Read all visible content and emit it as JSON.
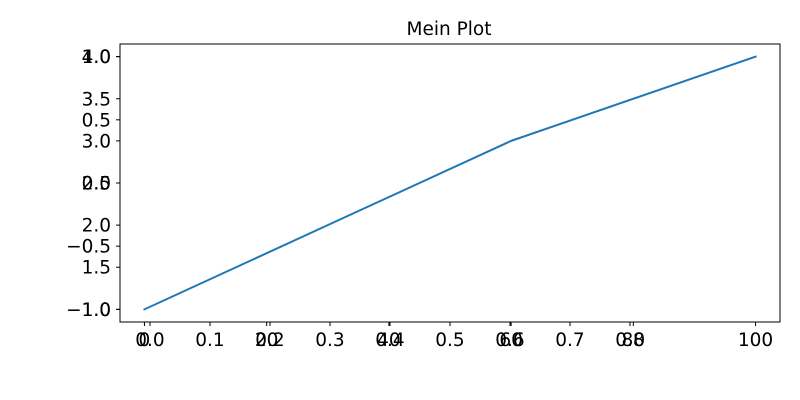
{
  "chart_data": {
    "type": "line",
    "title": "Mein Plot",
    "grid": false,
    "legend": "none",
    "series_color": "#1f77b4",
    "x": [
      0,
      60,
      100
    ],
    "y": [
      1,
      3,
      4
    ],
    "xlim": [
      -4,
      104
    ],
    "ylim": [
      0.85,
      4.15
    ],
    "primary_x_ticks": [
      0,
      20,
      40,
      60,
      80,
      100
    ],
    "primary_x_tick_labels": [
      "0",
      "20",
      "40",
      "60",
      "80",
      "100"
    ],
    "primary_y_ticks": [
      1.0,
      1.5,
      2.0,
      2.5,
      3.0,
      3.5,
      4.0
    ],
    "primary_y_tick_labels": [
      "1.0",
      "1.5",
      "2.0",
      "2.5",
      "3.0",
      "3.5",
      "4.0"
    ],
    "overlay_axes": {
      "xlim": [
        -0.05,
        1.05
      ],
      "ylim": [
        -1.1,
        1.1
      ],
      "x_ticks": [
        0.0,
        0.1,
        0.2,
        0.3,
        0.4,
        0.5,
        0.6,
        0.7,
        0.8
      ],
      "x_tick_labels": [
        "0.0",
        "0.1",
        "0.2",
        "0.3",
        "0.4",
        "0.5",
        "0.6",
        "0.7",
        "0.8"
      ],
      "y_ticks": [
        -1.0,
        -0.5,
        0.0,
        0.5,
        1.0
      ],
      "y_tick_labels": [
        "−1.0",
        "−0.5",
        "0.0",
        "0.5",
        "1.0"
      ]
    }
  }
}
